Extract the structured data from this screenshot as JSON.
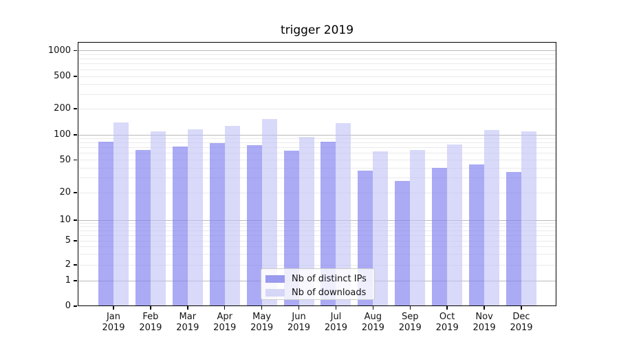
{
  "chart_data": {
    "type": "bar",
    "title": "trigger 2019",
    "x_categories": [
      "Jan",
      "Feb",
      "Mar",
      "Apr",
      "May",
      "Jun",
      "Jul",
      "Aug",
      "Sep",
      "Oct",
      "Nov",
      "Dec"
    ],
    "x_sub_label": "2019",
    "series": [
      {
        "name": "Nb of distinct IPs",
        "values": [
          82,
          66,
          73,
          79,
          75,
          65,
          82,
          37,
          28,
          40,
          44,
          36
        ],
        "color": "rgba(124,124,240,0.65)",
        "legend_color": "#9a9aee"
      },
      {
        "name": "Nb of downloads",
        "values": [
          139,
          110,
          115,
          127,
          152,
          94,
          137,
          63,
          66,
          77,
          113,
          110
        ],
        "color": "rgba(192,192,247,0.6)",
        "legend_color": "#d6d6f7"
      }
    ],
    "y_ticks": [
      0,
      1,
      2,
      5,
      10,
      20,
      50,
      100,
      200,
      500,
      1000
    ],
    "y_scale": "symlog",
    "ylim": [
      0,
      1300
    ],
    "grid": "on",
    "legend_position": "lower center"
  },
  "colors": {
    "grid_major": "#b9b9b9",
    "grid_minor": "#eaeaea",
    "axis": "#000000",
    "text": "#111111",
    "legend_bg": "rgba(255,255,255,0.8)",
    "legend_border": "#cccccc"
  }
}
